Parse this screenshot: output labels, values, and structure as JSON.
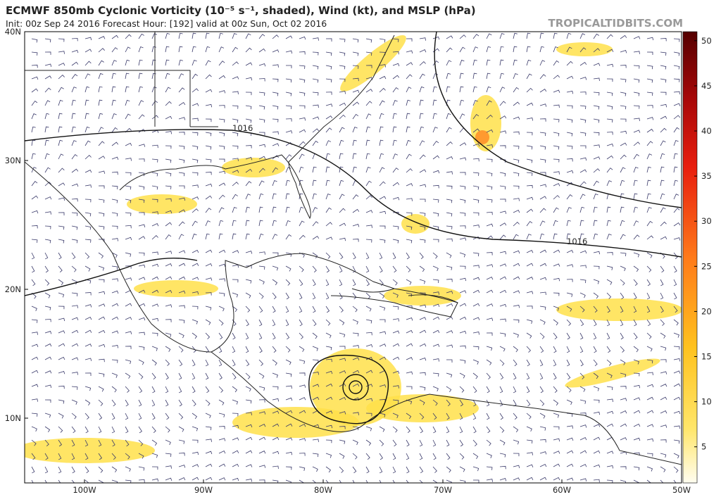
{
  "header": {
    "title": "ECMWF 850mb Cyclonic Vorticity (10⁻⁵ s⁻¹, shaded), Wind (kt), and MSLP (hPa)",
    "subtitle": "Init: 00z Sep 24 2016   Forecast Hour: [192]   valid at 00z Sun, Oct 02 2016",
    "watermark": "TROPICALTIDBITS.COM"
  },
  "map": {
    "lat_labels": [
      "40N",
      "30N",
      "20N",
      "10N"
    ],
    "lon_labels": [
      "100W",
      "90W",
      "80W",
      "70W",
      "60W",
      "50W"
    ],
    "isobar_labels": [
      "1016",
      "1016"
    ]
  },
  "colorbar": {
    "range": [
      1,
      51
    ],
    "ticks": [
      5,
      10,
      15,
      20,
      25,
      30,
      35,
      40,
      45,
      50
    ]
  }
}
